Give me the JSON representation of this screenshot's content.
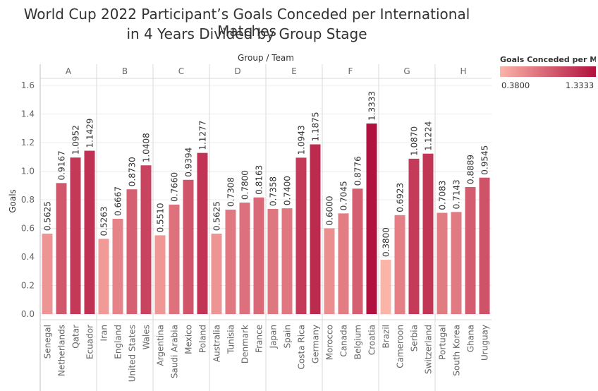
{
  "chart_data": {
    "type": "bar",
    "title_line1": "World Cup 2022 Participant’s Goals Conceded per International Matches",
    "title_line2": "in 4 Years Divided by Group Stage",
    "header_label": "Group / Team",
    "ylabel": "Goals",
    "ylim": [
      0,
      1.65
    ],
    "yticks": [
      "0.0",
      "0.2",
      "0.4",
      "0.6",
      "0.8",
      "1.0",
      "1.2",
      "1.4",
      "1.6"
    ],
    "grid": true,
    "legend": {
      "title": "Goals Conceded per Ma..",
      "min_label": "0.3800",
      "max_label": "1.3333",
      "color_min": "#fbb4a8",
      "color_max": "#b1113e",
      "placement": "top-right"
    },
    "groups": [
      {
        "name": "A",
        "teams": [
          {
            "team": "Senegal",
            "value": 0.5625,
            "label": "0.5625"
          },
          {
            "team": "Netherlands",
            "value": 0.9167,
            "label": "0.9167"
          },
          {
            "team": "Qatar",
            "value": 1.0952,
            "label": "1.0952"
          },
          {
            "team": "Ecuador",
            "value": 1.1429,
            "label": "1.1429"
          }
        ]
      },
      {
        "name": "B",
        "teams": [
          {
            "team": "Iran",
            "value": 0.5263,
            "label": "0.5263"
          },
          {
            "team": "England",
            "value": 0.6667,
            "label": "0.6667"
          },
          {
            "team": "United States",
            "value": 0.873,
            "label": "0.8730"
          },
          {
            "team": "Wales",
            "value": 1.0408,
            "label": "1.0408"
          }
        ]
      },
      {
        "name": "C",
        "teams": [
          {
            "team": "Argentina",
            "value": 0.551,
            "label": "0.5510"
          },
          {
            "team": "Saudi Arabia",
            "value": 0.766,
            "label": "0.7660"
          },
          {
            "team": "Mexico",
            "value": 0.9394,
            "label": "0.9394"
          },
          {
            "team": "Poland",
            "value": 1.1277,
            "label": "1.1277"
          }
        ]
      },
      {
        "name": "D",
        "teams": [
          {
            "team": "Australia",
            "value": 0.5625,
            "label": "0.5625"
          },
          {
            "team": "Tunisia",
            "value": 0.7308,
            "label": "0.7308"
          },
          {
            "team": "Denmark",
            "value": 0.78,
            "label": "0.7800"
          },
          {
            "team": "France",
            "value": 0.8163,
            "label": "0.8163"
          }
        ]
      },
      {
        "name": "E",
        "teams": [
          {
            "team": "Japan",
            "value": 0.7358,
            "label": "0.7358"
          },
          {
            "team": "Spain",
            "value": 0.74,
            "label": "0.7400"
          },
          {
            "team": "Costa Rica",
            "value": 1.0943,
            "label": "1.0943"
          },
          {
            "team": "Germany",
            "value": 1.1875,
            "label": "1.1875"
          }
        ]
      },
      {
        "name": "F",
        "teams": [
          {
            "team": "Morocco",
            "value": 0.6,
            "label": "0.6000"
          },
          {
            "team": "Canada",
            "value": 0.7045,
            "label": "0.7045"
          },
          {
            "team": "Belgium",
            "value": 0.8776,
            "label": "0.8776"
          },
          {
            "team": "Croatia",
            "value": 1.3333,
            "label": "1.3333"
          }
        ]
      },
      {
        "name": "G",
        "teams": [
          {
            "team": "Brazil",
            "value": 0.38,
            "label": "0.3800"
          },
          {
            "team": "Cameroon",
            "value": 0.6923,
            "label": "0.6923"
          },
          {
            "team": "Serbia",
            "value": 1.087,
            "label": "1.0870"
          },
          {
            "team": "Switzerland",
            "value": 1.1224,
            "label": "1.1224"
          }
        ]
      },
      {
        "name": "H",
        "teams": [
          {
            "team": "Portugal",
            "value": 0.7083,
            "label": "0.7083"
          },
          {
            "team": "South Korea",
            "value": 0.7143,
            "label": "0.7143"
          },
          {
            "team": "Ghana",
            "value": 0.8889,
            "label": "0.8889"
          },
          {
            "team": "Uruguay",
            "value": 0.9545,
            "label": "0.9545"
          }
        ]
      }
    ]
  }
}
